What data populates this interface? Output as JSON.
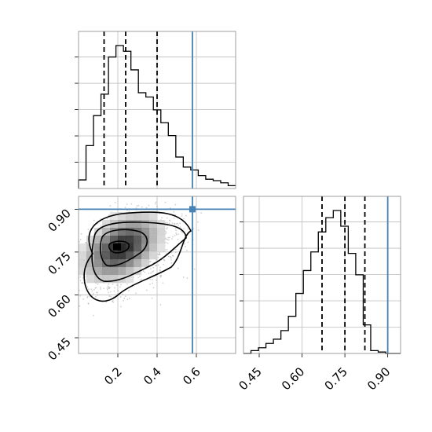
{
  "chart_data": {
    "type": "corner",
    "truth_color": "#4682b4",
    "truth": {
      "x": 0.58,
      "y": 0.9
    },
    "panels": [
      {
        "id": "hist-x",
        "type": "histogram",
        "xlim": [
          0.0,
          0.8
        ],
        "xticks": [
          0.2,
          0.4,
          0.6
        ],
        "bin_start": 0.0,
        "bin_width": 0.0381,
        "counts": [
          0.06,
          0.3,
          0.51,
          0.66,
          0.92,
          1.0,
          0.96,
          0.83,
          0.67,
          0.64,
          0.55,
          0.46,
          0.37,
          0.22,
          0.15,
          0.13,
          0.09,
          0.065,
          0.055,
          0.04,
          0.02
        ],
        "quantiles": [
          0.13,
          0.24,
          0.4
        ],
        "truth": 0.58
      },
      {
        "id": "hist-y",
        "type": "histogram",
        "xlim": [
          0.395,
          0.945
        ],
        "xticks": [
          0.45,
          0.6,
          0.75,
          0.9
        ],
        "xtick_labels": [
          "0.45",
          "0.60",
          "0.75",
          "0.90"
        ],
        "bin_start": 0.395,
        "bin_width": 0.0262,
        "counts": [
          0.0,
          0.02,
          0.04,
          0.07,
          0.1,
          0.16,
          0.26,
          0.42,
          0.58,
          0.71,
          0.85,
          0.95,
          1.0,
          0.89,
          0.7,
          0.55,
          0.2,
          0.02,
          0.01,
          0.0,
          0.0
        ],
        "quantiles": [
          0.67,
          0.75,
          0.82
        ],
        "truth": 0.9
      },
      {
        "id": "joint",
        "type": "scatter-density",
        "xlim": [
          0.0,
          0.8
        ],
        "ylim": [
          0.395,
          0.945
        ],
        "xticks": [
          0.2,
          0.4,
          0.6
        ],
        "xtick_labels": [
          "0.2",
          "0.4",
          "0.6"
        ],
        "yticks": [
          0.45,
          0.6,
          0.75,
          0.9
        ],
        "ytick_labels": [
          "0.45",
          "0.60",
          "0.75",
          "0.90"
        ],
        "density_peak": {
          "x": 0.2,
          "y": 0.77
        },
        "contour_levels": 4
      }
    ]
  }
}
